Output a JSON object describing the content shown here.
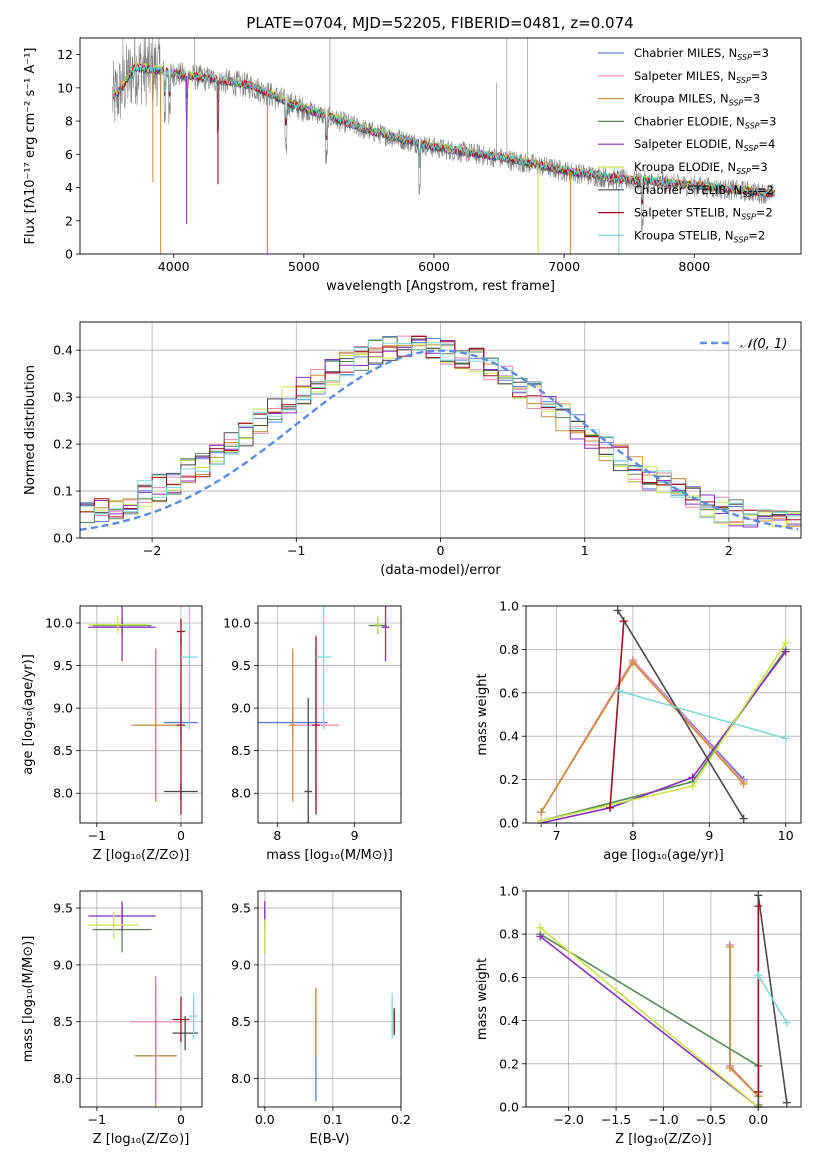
{
  "figure": {
    "title": "PLATE=0704, MJD=52205, FIBERID=0481, z=0.074"
  },
  "models": [
    {
      "name": "Chabrier MILES, N",
      "sub": "SSP",
      "n": "=3",
      "color": "#5b7fd6"
    },
    {
      "name": "Salpeter MILES, N",
      "sub": "SSP",
      "n": "=3",
      "color": "#ef8bb3"
    },
    {
      "name": "Kroupa MILES, N",
      "sub": "SSP",
      "n": "=3",
      "color": "#c8923a"
    },
    {
      "name": "Chabrier ELODIE, N",
      "sub": "SSP",
      "n": "=3",
      "color": "#5a8a5a"
    },
    {
      "name": "Salpeter ELODIE, N",
      "sub": "SSP",
      "n": "=4",
      "color": "#8a2fc0"
    },
    {
      "name": "Kroupa ELODIE, N",
      "sub": "SSP",
      "n": "=3",
      "color": "#c8e64a"
    },
    {
      "name": "Chabrier STELIB, N",
      "sub": "SSP",
      "n": "=2",
      "color": "#4a4a4a"
    },
    {
      "name": "Salpeter STELIB, N",
      "sub": "SSP",
      "n": "=2",
      "color": "#a01020"
    },
    {
      "name": "Kroupa STELIB, N",
      "sub": "SSP",
      "n": "=2",
      "color": "#80d8d8"
    }
  ],
  "chart_data": [
    {
      "id": "spectrum",
      "type": "line",
      "xlabel": "wavelength [Angstrom, rest frame]",
      "ylabel": "Flux [fλ10⁻¹⁷ erg cm⁻² s⁻¹ A⁻¹]",
      "xlim": [
        3280,
        8820
      ],
      "ylim": [
        0,
        13
      ],
      "xticks": [
        4000,
        5000,
        6000,
        7000,
        8000
      ],
      "yticks": [
        0,
        2,
        4,
        6,
        8,
        10,
        12
      ],
      "continuum_model": [
        [
          3550,
          9.4
        ],
        [
          3700,
          11.2
        ],
        [
          3900,
          11.0
        ],
        [
          4100,
          10.7
        ],
        [
          4300,
          10.5
        ],
        [
          4600,
          10.1
        ],
        [
          4900,
          9.0
        ],
        [
          5200,
          8.2
        ],
        [
          5500,
          7.4
        ],
        [
          6000,
          6.4
        ],
        [
          6500,
          5.8
        ],
        [
          7000,
          5.0
        ],
        [
          7400,
          4.5
        ],
        [
          8000,
          4.1
        ],
        [
          8600,
          3.6
        ]
      ],
      "absorption_lines": [
        3933,
        3969,
        4101,
        4340,
        4861,
        5175,
        5890,
        7600
      ],
      "model_dips": [
        [
          3900,
          0.0
        ],
        [
          4720,
          0.0
        ],
        [
          6800,
          0.0
        ],
        [
          7050,
          0.0
        ],
        [
          7420,
          0.0
        ],
        [
          4100,
          1.8
        ],
        [
          4340,
          4.2
        ],
        [
          3840,
          4.3
        ]
      ],
      "emission_lines": [
        [
          6563,
          13
        ],
        [
          6720,
          13
        ]
      ],
      "legend": "top-right"
    },
    {
      "id": "residuals",
      "type": "line",
      "xlabel": "(data-model)/error",
      "ylabel": "Normed distribution",
      "xlim": [
        -2.5,
        2.5
      ],
      "ylim": [
        0,
        0.46
      ],
      "xticks": [
        -2,
        -1,
        0,
        1,
        2
      ],
      "yticks": [
        0.0,
        0.1,
        0.2,
        0.3,
        0.4
      ],
      "reference_label": "𝒩(0, 1)",
      "reference_color": "#5b8ee0",
      "legend": "top-right",
      "grid": true
    },
    {
      "id": "age-vs-Z",
      "type": "scatter",
      "xlabel": "Z [log₁₀(Z/Z⊙)]",
      "ylabel": "age  [log₁₀(age/yr)]",
      "xlim": [
        -1.2,
        0.25
      ],
      "ylim": [
        7.65,
        10.2
      ],
      "xticks": [
        -1,
        0
      ],
      "yticks": [
        8.0,
        8.5,
        9.0,
        9.5,
        10.0
      ],
      "points": [
        {
          "m": 0,
          "x": -0.0,
          "y": 8.83,
          "ex": 0.2,
          "ey": 0.2
        },
        {
          "m": 1,
          "x": -0.3,
          "y": 8.8,
          "ex": 0.3,
          "ey": 0.9
        },
        {
          "m": 2,
          "x": -0.3,
          "y": 8.8,
          "ex": 0.25,
          "ey": 0.9
        },
        {
          "m": 3,
          "x": -0.7,
          "y": 9.97,
          "ex": 0.35,
          "ey": 0.1
        },
        {
          "m": 4,
          "x": -0.7,
          "y": 9.95,
          "ex": 0.4,
          "ey": 0.4
        },
        {
          "m": 5,
          "x": -0.75,
          "y": 9.98,
          "ex": 0.35,
          "ey": 0.1
        },
        {
          "m": 6,
          "x": 0.0,
          "y": 8.02,
          "ex": 0.2,
          "ey": 0.1
        },
        {
          "m": 7,
          "x": 0.0,
          "y": 9.9,
          "ex": 0.05,
          "ey": 0.15
        },
        {
          "m": 7,
          "x": 0.0,
          "y": 8.8,
          "ex": 0.05,
          "ey": 1.05
        },
        {
          "m": 8,
          "x": 0.1,
          "y": 9.6,
          "ex": 0.1,
          "ey": 0.85
        }
      ]
    },
    {
      "id": "age-vs-mass",
      "type": "scatter",
      "xlabel": "mass [log₁₀(M/M⊙)]",
      "ylabel": "",
      "xlim": [
        7.75,
        9.6
      ],
      "ylim": [
        7.65,
        10.2
      ],
      "xticks": [
        8,
        9
      ],
      "yticks": [
        8.0,
        8.5,
        9.0,
        9.5,
        10.0
      ],
      "points": [
        {
          "m": 0,
          "x": 8.2,
          "y": 8.83,
          "ex": 0.45,
          "ey": 0.2
        },
        {
          "m": 1,
          "x": 8.5,
          "y": 8.8,
          "ex": 0.3,
          "ey": 0.9
        },
        {
          "m": 2,
          "x": 8.2,
          "y": 8.8,
          "ex": 0.05,
          "ey": 0.9
        },
        {
          "m": 3,
          "x": 9.3,
          "y": 9.97,
          "ex": 0.12,
          "ey": 0.1
        },
        {
          "m": 4,
          "x": 9.4,
          "y": 9.95,
          "ex": 0.05,
          "ey": 0.4
        },
        {
          "m": 5,
          "x": 9.3,
          "y": 9.98,
          "ex": 0.05,
          "ey": 0.1
        },
        {
          "m": 6,
          "x": 8.4,
          "y": 8.02,
          "ex": 0.05,
          "ey": 1.1
        },
        {
          "m": 7,
          "x": 8.5,
          "y": 8.8,
          "ex": 0.05,
          "ey": 1.05
        },
        {
          "m": 8,
          "x": 8.6,
          "y": 9.6,
          "ex": 0.1,
          "ey": 0.85
        }
      ]
    },
    {
      "id": "weight-vs-age",
      "type": "line",
      "xlabel": "age  [log₁₀(age/yr)]",
      "ylabel": "mass weight",
      "xlim": [
        6.6,
        10.2
      ],
      "ylim": [
        0,
        1.0
      ],
      "xticks": [
        7,
        8,
        9,
        10
      ],
      "yticks": [
        0.0,
        0.2,
        0.4,
        0.6,
        0.8,
        1.0
      ],
      "series": [
        {
          "m": 0,
          "x": [
            6.8,
            8.0,
            9.45
          ],
          "y": [
            0.05,
            0.75,
            0.2
          ]
        },
        {
          "m": 1,
          "x": [
            6.8,
            8.0,
            9.45
          ],
          "y": [
            0.05,
            0.75,
            0.19
          ]
        },
        {
          "m": 2,
          "x": [
            6.8,
            8.0,
            9.45
          ],
          "y": [
            0.05,
            0.74,
            0.18
          ]
        },
        {
          "m": 3,
          "x": [
            6.8,
            8.78,
            10.0
          ],
          "y": [
            0.01,
            0.19,
            0.8
          ]
        },
        {
          "m": 4,
          "x": [
            6.8,
            7.7,
            8.78,
            10.0
          ],
          "y": [
            0.0,
            0.07,
            0.21,
            0.79
          ]
        },
        {
          "m": 5,
          "x": [
            6.8,
            8.78,
            10.0
          ],
          "y": [
            0.01,
            0.17,
            0.83
          ]
        },
        {
          "m": 6,
          "x": [
            7.8,
            9.45
          ],
          "y": [
            0.98,
            0.02
          ]
        },
        {
          "m": 7,
          "x": [
            7.7,
            7.88
          ],
          "y": [
            0.07,
            0.93
          ]
        },
        {
          "m": 8,
          "x": [
            7.8,
            10.0
          ],
          "y": [
            0.61,
            0.39
          ]
        }
      ]
    },
    {
      "id": "mass-vs-Z",
      "type": "scatter",
      "xlabel": "Z [log₁₀(Z/Z⊙)]",
      "ylabel": "mass [log₁₀(M/M⊙)]",
      "xlim": [
        -1.2,
        0.25
      ],
      "ylim": [
        7.75,
        9.65
      ],
      "xticks": [
        -1,
        0
      ],
      "yticks": [
        8.0,
        8.5,
        9.0,
        9.5
      ],
      "points": [
        {
          "m": 0,
          "x": -0.3,
          "y": 8.2,
          "ex": 0.25,
          "ey": 0.4
        },
        {
          "m": 1,
          "x": -0.3,
          "y": 8.5,
          "ex": 0.3,
          "ey": 0.3
        },
        {
          "m": 2,
          "x": -0.3,
          "y": 8.2,
          "ex": 0.25,
          "ey": 0.7
        },
        {
          "m": 3,
          "x": -0.7,
          "y": 9.31,
          "ex": 0.35,
          "ey": 0.2
        },
        {
          "m": 4,
          "x": -0.7,
          "y": 9.43,
          "ex": 0.4,
          "ey": 0.13
        },
        {
          "m": 5,
          "x": -0.8,
          "y": 9.35,
          "ex": 0.3,
          "ey": 0.12
        },
        {
          "m": 6,
          "x": 0.05,
          "y": 8.4,
          "ex": 0.15,
          "ey": 0.15
        },
        {
          "m": 7,
          "x": 0.0,
          "y": 8.52,
          "ex": 0.1,
          "ey": 0.2
        },
        {
          "m": 8,
          "x": 0.15,
          "y": 8.55,
          "ex": 0.05,
          "ey": 0.2
        }
      ]
    },
    {
      "id": "mass-vs-EBV",
      "type": "scatter",
      "xlabel": "E(B-V)",
      "ylabel": "",
      "xlim": [
        -0.01,
        0.2
      ],
      "ylim": [
        7.75,
        9.65
      ],
      "xticks": [
        0.0,
        0.1,
        0.2
      ],
      "yticks": [
        8.0,
        8.5,
        9.0,
        9.5
      ],
      "points": [
        {
          "m": 0,
          "x": 0.075,
          "y": 8.2,
          "ex": 0,
          "ey": 0.4
        },
        {
          "m": 1,
          "x": 0.075,
          "y": 8.5,
          "ex": 0,
          "ey": 0.3
        },
        {
          "m": 2,
          "x": 0.075,
          "y": 8.5,
          "ex": 0,
          "ey": 0.3
        },
        {
          "m": 3,
          "x": 0.0,
          "y": 9.3,
          "ex": 0,
          "ey": 0.2
        },
        {
          "m": 4,
          "x": 0.0,
          "y": 9.43,
          "ex": 0,
          "ey": 0.13
        },
        {
          "m": 5,
          "x": 0.0,
          "y": 9.25,
          "ex": 0,
          "ey": 0.15
        },
        {
          "m": 6,
          "x": 0.19,
          "y": 8.5,
          "ex": 0,
          "ey": 0.12
        },
        {
          "m": 7,
          "x": 0.19,
          "y": 8.5,
          "ex": 0,
          "ey": 0.1
        },
        {
          "m": 8,
          "x": 0.187,
          "y": 8.55,
          "ex": 0,
          "ey": 0.2
        }
      ]
    },
    {
      "id": "weight-vs-Z",
      "type": "line",
      "xlabel": "Z [log₁₀(Z/Z⊙)]",
      "ylabel": "mass weight",
      "xlim": [
        -2.45,
        0.45
      ],
      "ylim": [
        0,
        1.0
      ],
      "xticks": [
        -2.0,
        -1.5,
        -1.0,
        -0.5,
        0.0
      ],
      "yticks": [
        0.0,
        0.2,
        0.4,
        0.6,
        0.8,
        1.0
      ],
      "series": [
        {
          "m": 0,
          "x": [
            -0.3,
            -0.3,
            -0.0
          ],
          "y": [
            0.75,
            0.19,
            0.05
          ]
        },
        {
          "m": 1,
          "x": [
            -0.3,
            -0.3,
            -0.0
          ],
          "y": [
            0.75,
            0.19,
            0.05
          ]
        },
        {
          "m": 2,
          "x": [
            -0.3,
            -0.3,
            -0.0
          ],
          "y": [
            0.74,
            0.18,
            0.05
          ]
        },
        {
          "m": 3,
          "x": [
            -2.3,
            0.0,
            0.0
          ],
          "y": [
            0.8,
            0.19,
            0.01
          ]
        },
        {
          "m": 4,
          "x": [
            -2.3,
            0.0,
            0.0
          ],
          "y": [
            0.79,
            0.0,
            0.07
          ]
        },
        {
          "m": 5,
          "x": [
            -2.3,
            0.0
          ],
          "y": [
            0.83,
            0.0
          ]
        },
        {
          "m": 6,
          "x": [
            0.0,
            0.0,
            0.3
          ],
          "y": [
            0.0,
            0.98,
            0.02
          ]
        },
        {
          "m": 7,
          "x": [
            0.0,
            0.0
          ],
          "y": [
            0.07,
            0.93
          ]
        },
        {
          "m": 8,
          "x": [
            0.0,
            0.3
          ],
          "y": [
            0.61,
            0.39
          ]
        }
      ]
    }
  ]
}
